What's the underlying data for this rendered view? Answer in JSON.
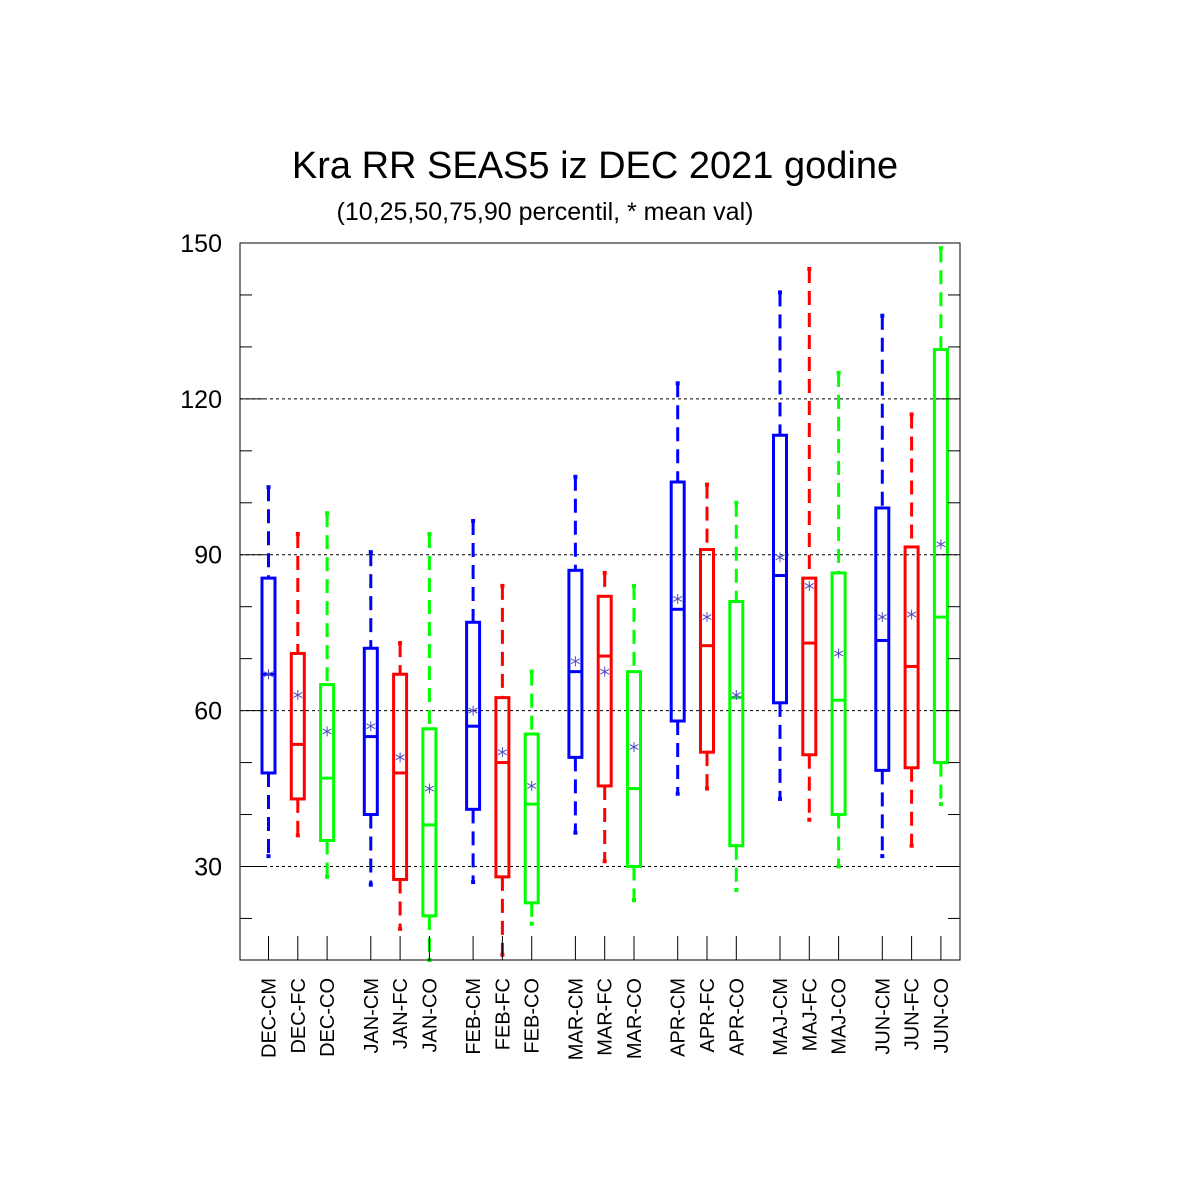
{
  "chart_data": {
    "type": "boxplot",
    "title": "Kra RR SEAS5 iz DEC 2021 godine",
    "subtitle": "(10,25,50,75,90 percentil, * mean val)",
    "ylim": [
      12,
      150
    ],
    "yticks": [
      30,
      60,
      90,
      120,
      150
    ],
    "grid": "horizontal dashed at major ticks",
    "colors": {
      "CM": "#0000ff",
      "FC": "#ff0000",
      "CO": "#00ff00",
      "mean_marker": "#4b4bbf"
    },
    "groups": [
      {
        "month": "DEC",
        "boxes": [
          {
            "label": "DEC-CM",
            "kind": "CM",
            "p10": 32,
            "p25": 48,
            "p50": 67,
            "p75": 85.5,
            "p90": 103,
            "mean": 67
          },
          {
            "label": "DEC-FC",
            "kind": "FC",
            "p10": 36,
            "p25": 43,
            "p50": 53.5,
            "p75": 71,
            "p90": 94,
            "mean": 63
          },
          {
            "label": "DEC-CO",
            "kind": "CO",
            "p10": 28,
            "p25": 35,
            "p50": 47,
            "p75": 65,
            "p90": 98,
            "mean": 56
          }
        ]
      },
      {
        "month": "JAN",
        "boxes": [
          {
            "label": "JAN-CM",
            "kind": "CM",
            "p10": 26.5,
            "p25": 40,
            "p50": 55,
            "p75": 72,
            "p90": 90.5,
            "mean": 57
          },
          {
            "label": "JAN-FC",
            "kind": "FC",
            "p10": 18,
            "p25": 27.5,
            "p50": 48,
            "p75": 67,
            "p90": 73,
            "mean": 51
          },
          {
            "label": "JAN-CO",
            "kind": "CO",
            "p10": 12,
            "p25": 20.5,
            "p50": 38,
            "p75": 56.5,
            "p90": 94,
            "mean": 45
          }
        ]
      },
      {
        "month": "FEB",
        "boxes": [
          {
            "label": "FEB-CM",
            "kind": "CM",
            "p10": 27,
            "p25": 41,
            "p50": 57,
            "p75": 77,
            "p90": 96.5,
            "mean": 60
          },
          {
            "label": "FEB-FC",
            "kind": "FC",
            "p10": 13,
            "p25": 28,
            "p50": 50,
            "p75": 62.5,
            "p90": 84,
            "mean": 52
          },
          {
            "label": "FEB-CO",
            "kind": "CO",
            "p10": 19,
            "p25": 23,
            "p50": 42,
            "p75": 55.5,
            "p90": 67.5,
            "mean": 45.5
          }
        ]
      },
      {
        "month": "MAR",
        "boxes": [
          {
            "label": "MAR-CM",
            "kind": "CM",
            "p10": 36.5,
            "p25": 51,
            "p50": 67.5,
            "p75": 87,
            "p90": 105,
            "mean": 69.5
          },
          {
            "label": "MAR-FC",
            "kind": "FC",
            "p10": 31,
            "p25": 45.5,
            "p50": 70.5,
            "p75": 82,
            "p90": 86.5,
            "mean": 67.5
          },
          {
            "label": "MAR-CO",
            "kind": "CO",
            "p10": 23.5,
            "p25": 30,
            "p50": 45,
            "p75": 67.5,
            "p90": 84,
            "mean": 53
          }
        ]
      },
      {
        "month": "APR",
        "boxes": [
          {
            "label": "APR-CM",
            "kind": "CM",
            "p10": 44,
            "p25": 58,
            "p50": 79.5,
            "p75": 104,
            "p90": 123,
            "mean": 81.5
          },
          {
            "label": "APR-FC",
            "kind": "FC",
            "p10": 45,
            "p25": 52,
            "p50": 72.5,
            "p75": 91,
            "p90": 103.5,
            "mean": 78
          },
          {
            "label": "APR-CO",
            "kind": "CO",
            "p10": 25.5,
            "p25": 34,
            "p50": 62.5,
            "p75": 81,
            "p90": 100,
            "mean": 63
          }
        ]
      },
      {
        "month": "MAJ",
        "boxes": [
          {
            "label": "MAJ-CM",
            "kind": "CM",
            "p10": 43,
            "p25": 61.5,
            "p50": 86,
            "p75": 113,
            "p90": 140.5,
            "mean": 89.5
          },
          {
            "label": "MAJ-FC",
            "kind": "FC",
            "p10": 39,
            "p25": 51.5,
            "p50": 73,
            "p75": 85.5,
            "p90": 145,
            "mean": 84
          },
          {
            "label": "MAJ-CO",
            "kind": "CO",
            "p10": 30,
            "p25": 40,
            "p50": 62,
            "p75": 86.5,
            "p90": 125,
            "mean": 71
          }
        ]
      },
      {
        "month": "JUN",
        "boxes": [
          {
            "label": "JUN-CM",
            "kind": "CM",
            "p10": 32,
            "p25": 48.5,
            "p50": 73.5,
            "p75": 99,
            "p90": 136,
            "mean": 78
          },
          {
            "label": "JUN-FC",
            "kind": "FC",
            "p10": 34,
            "p25": 49,
            "p50": 68.5,
            "p75": 91.5,
            "p90": 117,
            "mean": 78.5
          },
          {
            "label": "JUN-CO",
            "kind": "CO",
            "p10": 42,
            "p25": 50,
            "p50": 78,
            "p75": 129.5,
            "p90": 149,
            "mean": 92
          }
        ]
      }
    ]
  }
}
